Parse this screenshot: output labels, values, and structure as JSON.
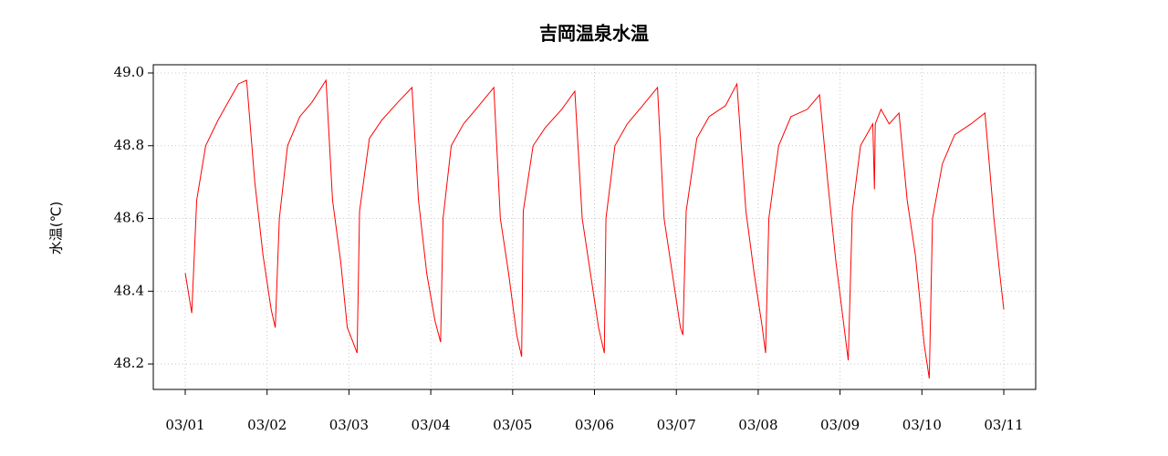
{
  "chart_data": {
    "type": "line",
    "title": "吉岡温泉水温",
    "y_label": "水温(℃)",
    "x": [
      1.0,
      1.08,
      1.14,
      1.25,
      1.4,
      1.55,
      1.65,
      1.75,
      1.85,
      1.95,
      2.05,
      2.1,
      2.15,
      2.25,
      2.4,
      2.55,
      2.72,
      2.8,
      2.9,
      2.98,
      3.05,
      3.1,
      3.13,
      3.25,
      3.4,
      3.6,
      3.77,
      3.85,
      3.95,
      4.05,
      4.12,
      4.15,
      4.25,
      4.4,
      4.55,
      4.77,
      4.85,
      4.95,
      5.05,
      5.11,
      5.13,
      5.25,
      5.4,
      5.6,
      5.76,
      5.85,
      5.95,
      6.05,
      6.12,
      6.14,
      6.25,
      6.4,
      6.55,
      6.77,
      6.85,
      6.95,
      7.05,
      7.08,
      7.12,
      7.25,
      7.4,
      7.6,
      7.74,
      7.85,
      7.95,
      8.05,
      8.09,
      8.13,
      8.25,
      8.4,
      8.6,
      8.75,
      8.85,
      8.95,
      9.05,
      9.1,
      9.15,
      9.25,
      9.4,
      9.42,
      9.43,
      9.5,
      9.6,
      9.72,
      9.82,
      9.92,
      10.03,
      10.09,
      10.13,
      10.25,
      10.4,
      10.6,
      10.77,
      10.88,
      10.95,
      11.0
    ],
    "series": [
      {
        "name": "水温",
        "color": "#ff0000",
        "values": [
          48.45,
          48.34,
          48.65,
          48.8,
          48.87,
          48.93,
          48.97,
          48.98,
          48.7,
          48.5,
          48.35,
          48.3,
          48.6,
          48.8,
          48.88,
          48.92,
          48.98,
          48.65,
          48.48,
          48.3,
          48.26,
          48.23,
          48.62,
          48.82,
          48.87,
          48.92,
          48.96,
          48.65,
          48.45,
          48.32,
          48.26,
          48.6,
          48.8,
          48.86,
          48.9,
          48.96,
          48.6,
          48.45,
          48.28,
          48.22,
          48.62,
          48.8,
          48.85,
          48.9,
          48.95,
          48.6,
          48.45,
          48.3,
          48.23,
          48.6,
          48.8,
          48.86,
          48.9,
          48.96,
          48.6,
          48.45,
          48.3,
          48.28,
          48.62,
          48.82,
          48.88,
          48.91,
          48.97,
          48.62,
          48.45,
          48.3,
          48.23,
          48.6,
          48.8,
          48.88,
          48.9,
          48.94,
          48.7,
          48.48,
          48.3,
          48.21,
          48.62,
          48.8,
          48.86,
          48.68,
          48.86,
          48.9,
          48.86,
          48.89,
          48.65,
          48.5,
          48.25,
          48.16,
          48.6,
          48.75,
          48.83,
          48.86,
          48.89,
          48.6,
          48.45,
          48.35
        ]
      }
    ],
    "xlim": [
      0.61,
      11.39
    ],
    "xticks": [
      {
        "value": 1,
        "label": "03/01"
      },
      {
        "value": 2,
        "label": "03/02"
      },
      {
        "value": 3,
        "label": "03/03"
      },
      {
        "value": 4,
        "label": "03/04"
      },
      {
        "value": 5,
        "label": "03/05"
      },
      {
        "value": 6,
        "label": "03/06"
      },
      {
        "value": 7,
        "label": "03/07"
      },
      {
        "value": 8,
        "label": "03/08"
      },
      {
        "value": 9,
        "label": "03/09"
      },
      {
        "value": 10,
        "label": "03/10"
      },
      {
        "value": 11,
        "label": "03/11"
      }
    ],
    "ylim": [
      48.13,
      49.0226
    ],
    "yticks": [
      {
        "value": 48.2,
        "label": "48.2"
      },
      {
        "value": 48.4,
        "label": "48.4"
      },
      {
        "value": 48.6,
        "label": "48.6"
      },
      {
        "value": 48.8,
        "label": "48.8"
      },
      {
        "value": 49.0,
        "label": "49.0"
      }
    ],
    "grid": true
  }
}
